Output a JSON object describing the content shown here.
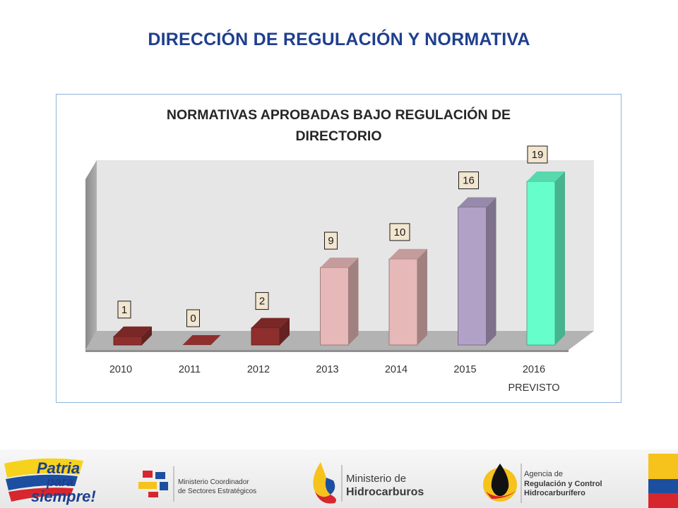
{
  "header": {
    "title": "DIRECCIÓN DE REGULACIÓN Y NORMATIVA"
  },
  "chart_data": {
    "type": "bar",
    "title": "NORMATIVAS APROBADAS BAJO REGULACIÓN DE DIRECTORIO",
    "title_lines": [
      "NORMATIVAS APROBADAS BAJO REGULACIÓN DE",
      "DIRECTORIO"
    ],
    "categories": [
      {
        "label": "2010",
        "sublabel": ""
      },
      {
        "label": "2011",
        "sublabel": ""
      },
      {
        "label": "2012",
        "sublabel": ""
      },
      {
        "label": "2013",
        "sublabel": ""
      },
      {
        "label": "2014",
        "sublabel": ""
      },
      {
        "label": "2015",
        "sublabel": ""
      },
      {
        "label": "2016",
        "sublabel": "PREVISTO"
      }
    ],
    "values": [
      1,
      0,
      2,
      9,
      10,
      16,
      19
    ],
    "colors": [
      "#8e2f2e",
      "#8e2f2e",
      "#8e2f2e",
      "#e6b8b7",
      "#e6b8b7",
      "#b2a1c7",
      "#66ffcc"
    ],
    "ylim": [
      0,
      19
    ],
    "grid": false,
    "legend": "none",
    "three_d": true
  },
  "footer": {
    "logo_patria": {
      "line1": "Patria",
      "line2": "para",
      "line3": "siempre!"
    },
    "logo_ministerio_coordinador": {
      "line1": "Ministerio Coordinador",
      "line2": "de Sectores Estratégicos"
    },
    "logo_ministerio_hidrocarburos": {
      "line1": "Ministerio de",
      "line2": "Hidrocarburos"
    },
    "logo_agencia": {
      "line1": "Agencia de",
      "line2": "Regulación y Control",
      "line3": "Hidrocarburífero"
    }
  }
}
